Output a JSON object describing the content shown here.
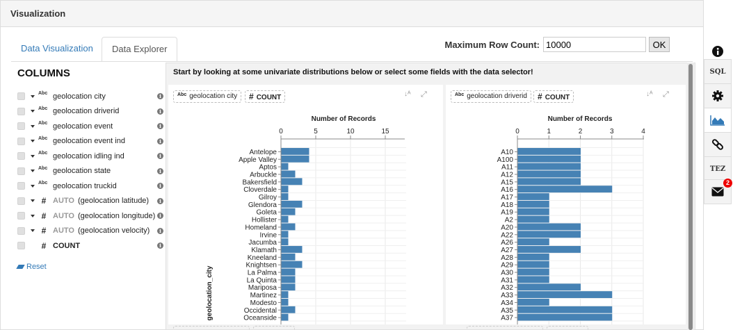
{
  "panel": {
    "title": "Visualization"
  },
  "tabs": [
    {
      "label": "Data Visualization",
      "active": false
    },
    {
      "label": "Data Explorer",
      "active": true
    }
  ],
  "max_row": {
    "label": "Maximum Row Count:",
    "value": "10000",
    "ok_label": "OK"
  },
  "columns": {
    "title": "COLUMNS",
    "items": [
      {
        "type_icon": "Abc",
        "auto": "",
        "name": "geolocation city",
        "has_caret": true,
        "bold": false
      },
      {
        "type_icon": "Abc",
        "auto": "",
        "name": "geolocation driverid",
        "has_caret": true,
        "bold": false
      },
      {
        "type_icon": "Abc",
        "auto": "",
        "name": "geolocation event",
        "has_caret": true,
        "bold": false
      },
      {
        "type_icon": "Abc",
        "auto": "",
        "name": "geolocation event ind",
        "has_caret": true,
        "bold": false
      },
      {
        "type_icon": "Abc",
        "auto": "",
        "name": "geolocation idling ind",
        "has_caret": true,
        "bold": false
      },
      {
        "type_icon": "Abc",
        "auto": "",
        "name": "geolocation state",
        "has_caret": true,
        "bold": false
      },
      {
        "type_icon": "Abc",
        "auto": "",
        "name": "geolocation truckid",
        "has_caret": true,
        "bold": false
      },
      {
        "type_icon": "#",
        "auto": "AUTO",
        "name": "(geolocation latitude)",
        "has_caret": true,
        "bold": false
      },
      {
        "type_icon": "#",
        "auto": "AUTO",
        "name": "(geolocation longitude)",
        "has_caret": true,
        "bold": false
      },
      {
        "type_icon": "#",
        "auto": "AUTO",
        "name": "(geolocation velocity)",
        "has_caret": true,
        "bold": false
      },
      {
        "type_icon": "#",
        "auto": "",
        "name": "COUNT",
        "has_caret": false,
        "bold": true
      }
    ],
    "reset_label": "Reset"
  },
  "explorer": {
    "intro": "Start by looking at some univariate distributions below or select some fields with the data selector!"
  },
  "cards": [
    {
      "field_icon": "Abc",
      "field": "geolocation city",
      "measure_icon": "#",
      "measure": "COUNT"
    },
    {
      "field_icon": "Abc",
      "field": "geolocation driverid",
      "measure_icon": "#",
      "measure": "COUNT"
    }
  ],
  "sidebar": {
    "items": [
      {
        "name": "info-icon",
        "label": ""
      },
      {
        "name": "sql-button",
        "label": "SQL"
      },
      {
        "name": "gear-icon",
        "label": ""
      },
      {
        "name": "area-chart-icon",
        "label": ""
      },
      {
        "name": "link-icon",
        "label": ""
      },
      {
        "name": "tez-button",
        "label": "TEZ"
      },
      {
        "name": "envelope-icon",
        "label": ""
      }
    ],
    "badge": "2"
  },
  "colors": {
    "bar": "#4682b4",
    "link": "#337ab7",
    "badge": "#e00000"
  },
  "chart_data": [
    {
      "type": "bar",
      "orientation": "horizontal",
      "title": "Number of Records",
      "ylabel": "geolocation_city",
      "xlim": [
        0,
        18
      ],
      "xticks": [
        0,
        5,
        10,
        15
      ],
      "grid": true,
      "categories": [
        "Antelope",
        "Apple Valley",
        "Aptos",
        "Arbuckle",
        "Bakersfield",
        "Cloverdale",
        "Gilroy",
        "Glendora",
        "Goleta",
        "Hollister",
        "Homeland",
        "Irvine",
        "Jacumba",
        "Klamath",
        "Kneeland",
        "Knightsen",
        "La Palma",
        "La Quinta",
        "Mariposa",
        "Martinez",
        "Modesto",
        "Occidental",
        "Oceanside"
      ],
      "values": [
        4,
        4,
        1,
        2,
        3,
        1,
        1,
        3,
        2,
        1,
        2,
        1,
        1,
        3,
        2,
        3,
        2,
        2,
        2,
        1,
        1,
        2,
        1
      ]
    },
    {
      "type": "bar",
      "orientation": "horizontal",
      "title": "Number of Records",
      "xlim": [
        0,
        4
      ],
      "xticks": [
        0,
        1,
        2,
        3,
        4
      ],
      "grid": true,
      "categories": [
        "A10",
        "A100",
        "A11",
        "A12",
        "A15",
        "A16",
        "A17",
        "A18",
        "A19",
        "A2",
        "A20",
        "A22",
        "A26",
        "A27",
        "A28",
        "A29",
        "A30",
        "A31",
        "A32",
        "A33",
        "A34",
        "A35",
        "A37"
      ],
      "values": [
        2,
        2,
        2,
        2,
        2,
        3,
        1,
        1,
        1,
        1,
        2,
        2,
        1,
        2,
        1,
        1,
        1,
        1,
        2,
        3,
        1,
        3,
        3
      ]
    }
  ]
}
